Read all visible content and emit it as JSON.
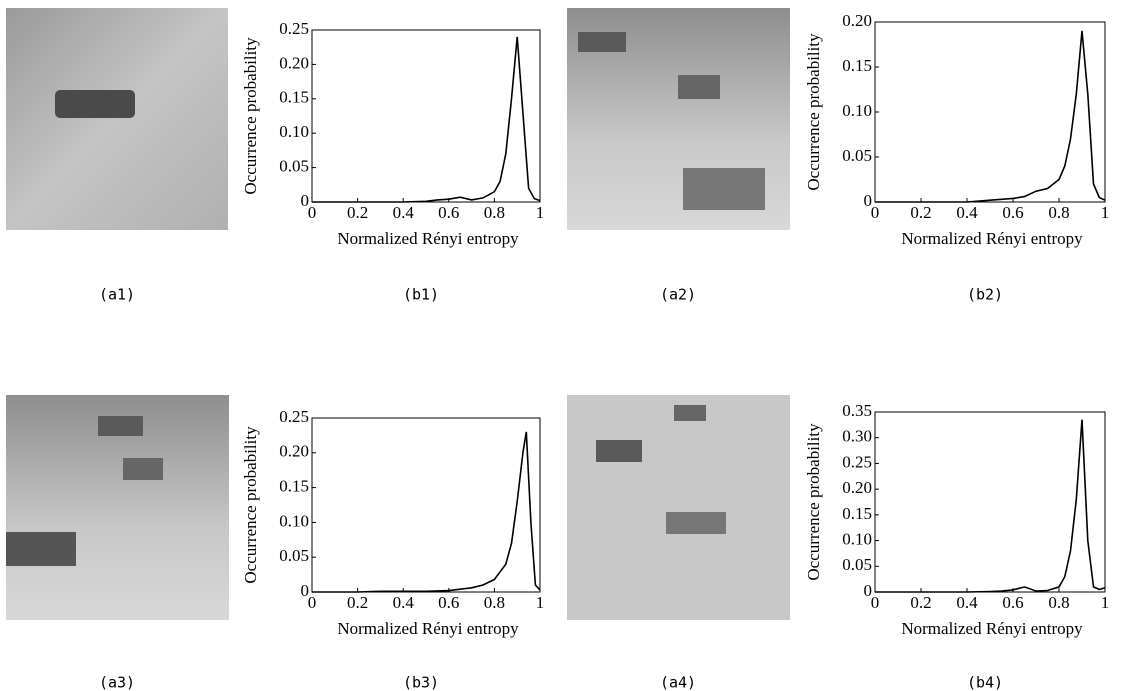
{
  "images": [
    {
      "caption": "(a1)"
    },
    {
      "caption": "(a2)"
    },
    {
      "caption": "(a3)"
    },
    {
      "caption": "(a4)"
    }
  ],
  "chart_data": [
    {
      "type": "line",
      "caption": "(b1)",
      "xlabel": "Normalized Rényi entropy",
      "ylabel": "Occurrence probability",
      "color": "#000000",
      "x": [
        0,
        0.1,
        0.2,
        0.3,
        0.4,
        0.5,
        0.55,
        0.6,
        0.65,
        0.7,
        0.75,
        0.8,
        0.825,
        0.85,
        0.875,
        0.9,
        0.925,
        0.95,
        0.975,
        1
      ],
      "values": [
        0,
        0,
        0,
        0,
        0,
        0.001,
        0.003,
        0.004,
        0.007,
        0.003,
        0.006,
        0.015,
        0.03,
        0.07,
        0.15,
        0.24,
        0.13,
        0.02,
        0.005,
        0.002
      ],
      "xlim": [
        0,
        1
      ],
      "xticks": [
        0,
        0.2,
        0.4,
        0.6,
        0.8,
        1
      ],
      "ylim": [
        0,
        0.25
      ],
      "yticks": [
        0,
        0.05,
        {
          "value": 0.1,
          "label": "0.10"
        },
        0.15,
        {
          "value": 0.2,
          "label": "0.20"
        },
        0.25
      ]
    },
    {
      "type": "line",
      "caption": "(b2)",
      "xlabel": "Normalized Rényi entropy",
      "ylabel": "Occurrence probability",
      "color": "#000000",
      "x": [
        0,
        0.1,
        0.2,
        0.3,
        0.4,
        0.5,
        0.55,
        0.6,
        0.65,
        0.7,
        0.75,
        0.8,
        0.825,
        0.85,
        0.875,
        0.9,
        0.925,
        0.95,
        0.975,
        1
      ],
      "values": [
        0,
        0,
        0,
        0,
        0,
        0.002,
        0.003,
        0.004,
        0.006,
        0.012,
        0.015,
        0.025,
        0.04,
        0.07,
        0.12,
        0.19,
        0.12,
        0.02,
        0.005,
        0.002
      ],
      "xlim": [
        0,
        1
      ],
      "xticks": [
        0,
        0.2,
        0.4,
        0.6,
        0.8,
        1
      ],
      "ylim": [
        0,
        0.2
      ],
      "yticks": [
        0,
        0.05,
        {
          "value": 0.1,
          "label": "0.10"
        },
        0.15,
        {
          "value": 0.2,
          "label": "0.20"
        }
      ]
    },
    {
      "type": "line",
      "caption": "(b3)",
      "xlabel": "Normalized Rényi entropy",
      "ylabel": "Occurrence probability",
      "color": "#000000",
      "x": [
        0,
        0.1,
        0.2,
        0.3,
        0.4,
        0.5,
        0.6,
        0.65,
        0.7,
        0.75,
        0.8,
        0.85,
        0.875,
        0.9,
        0.925,
        0.94,
        0.96,
        0.98,
        1
      ],
      "values": [
        0,
        0,
        0,
        0.001,
        0.001,
        0.001,
        0.002,
        0.004,
        0.006,
        0.01,
        0.018,
        0.04,
        0.07,
        0.13,
        0.2,
        0.23,
        0.1,
        0.01,
        0.003
      ],
      "xlim": [
        0,
        1
      ],
      "xticks": [
        0,
        0.2,
        0.4,
        0.6,
        0.8,
        1
      ],
      "ylim": [
        0,
        0.25
      ],
      "yticks": [
        0,
        0.05,
        {
          "value": 0.1,
          "label": "0.10"
        },
        0.15,
        {
          "value": 0.2,
          "label": "0.20"
        },
        0.25
      ]
    },
    {
      "type": "line",
      "caption": "(b4)",
      "xlabel": "Normalized Rényi entropy",
      "ylabel": "Occurrence probability",
      "color": "#000000",
      "x": [
        0,
        0.1,
        0.2,
        0.3,
        0.4,
        0.5,
        0.55,
        0.6,
        0.65,
        0.7,
        0.75,
        0.8,
        0.825,
        0.85,
        0.875,
        0.9,
        0.925,
        0.95,
        0.975,
        1
      ],
      "values": [
        0,
        0,
        0,
        0,
        0,
        0.001,
        0.002,
        0.004,
        0.01,
        0.002,
        0.003,
        0.01,
        0.03,
        0.08,
        0.18,
        0.335,
        0.1,
        0.01,
        0.005,
        0.008
      ],
      "xlim": [
        0,
        1
      ],
      "xticks": [
        0,
        0.2,
        0.4,
        0.6,
        0.8,
        1
      ],
      "ylim": [
        0,
        0.35
      ],
      "yticks": [
        0,
        0.05,
        {
          "value": 0.1,
          "label": "0.10"
        },
        0.15,
        {
          "value": 0.2,
          "label": "0.20"
        },
        0.25,
        {
          "value": 0.3,
          "label": "0.30"
        },
        0.35
      ]
    }
  ]
}
